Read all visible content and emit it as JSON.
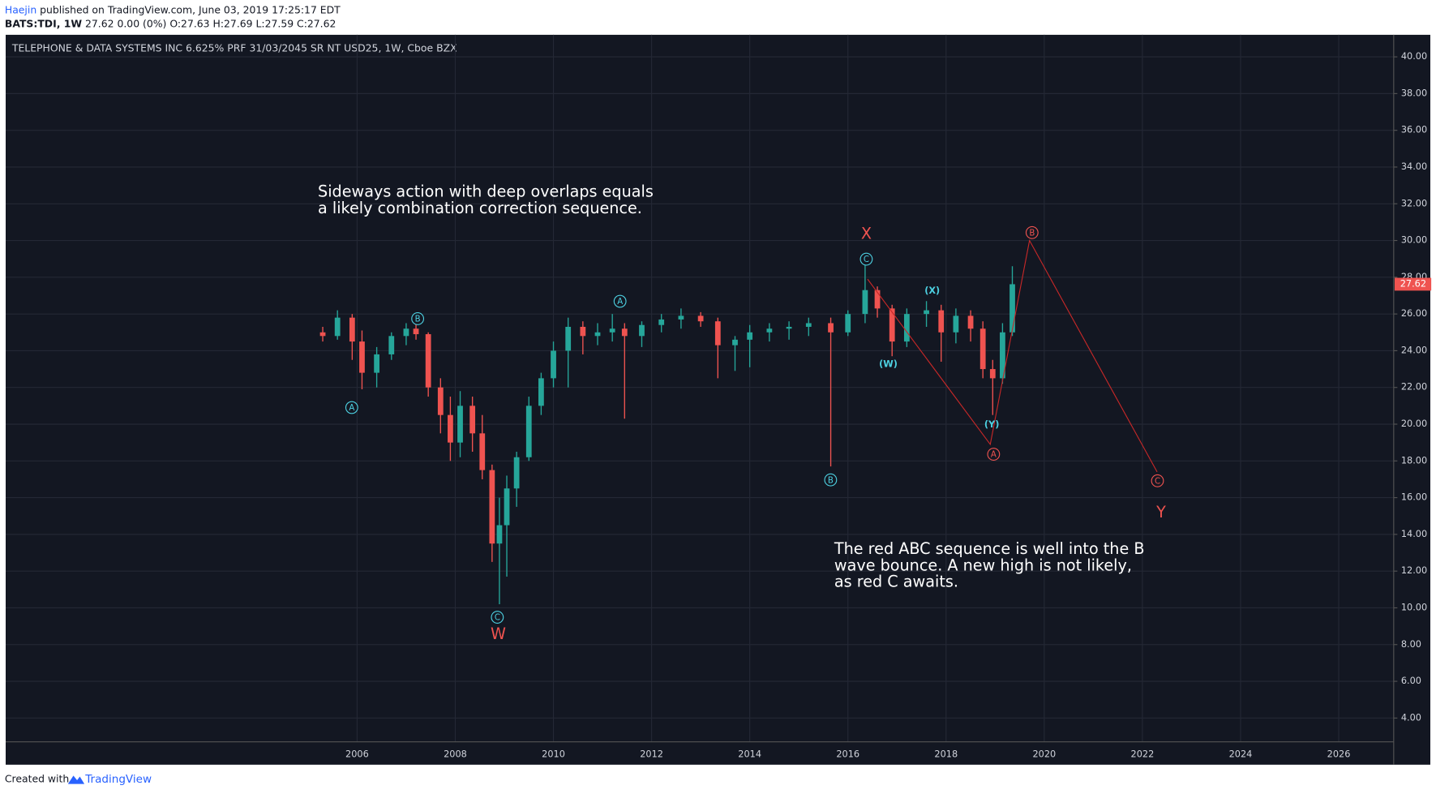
{
  "chart_data": {
    "type": "candlestick",
    "header": {
      "author": "Haejin",
      "published": "published on TradingView.com, June 03, 2019 17:25:17 EDT",
      "symbol": "BATS:TDI, 1W",
      "quote": "27.62 0.00 (0%) O:27.63 H:27.69 L:27.59 C:27.62"
    },
    "title": "TELEPHONE & DATA SYSTEMS INC 6.625% PRF 31/03/2045 SR NT USD25, 1W, Cboe BZX",
    "footer": {
      "created": "Created with",
      "brand": "TradingView"
    },
    "up_color": "#26a69a",
    "down_color": "#ef5350",
    "x": [
      2005.3,
      2005.6,
      2005.9,
      2006.1,
      2006.4,
      2006.7,
      2007.0,
      2007.2,
      2007.45,
      2007.7,
      2007.9,
      2008.1,
      2008.35,
      2008.55,
      2008.75,
      2008.9,
      2009.05,
      2009.25,
      2009.5,
      2009.75,
      2010.0,
      2010.3,
      2010.6,
      2010.9,
      2011.2,
      2011.45,
      2011.8,
      2012.2,
      2012.6,
      2013.0,
      2013.35,
      2013.7,
      2014.0,
      2014.4,
      2014.8,
      2015.2,
      2015.65,
      2016.0,
      2016.35,
      2016.6,
      2016.9,
      2017.2,
      2017.6,
      2017.9,
      2018.2,
      2018.5,
      2018.75,
      2018.95,
      2019.15,
      2019.35
    ],
    "open": [
      25,
      24.8,
      25.8,
      24.5,
      22.8,
      23.8,
      24.8,
      25.2,
      24.9,
      22,
      20.5,
      19,
      21,
      19.5,
      17.5,
      13.5,
      14.5,
      16.5,
      18.2,
      21,
      22.5,
      24,
      25.3,
      24.8,
      25,
      25.2,
      24.8,
      25.4,
      25.7,
      25.9,
      25.6,
      24.3,
      24.6,
      25,
      25.2,
      25.3,
      25.5,
      25,
      26,
      27.3,
      26.3,
      24.5,
      26,
      26.2,
      25,
      25.9,
      25.2,
      23,
      22.5,
      25
    ],
    "high": [
      25.3,
      26.2,
      26,
      25.1,
      24.2,
      25,
      25.5,
      25.6,
      25,
      22.5,
      21.5,
      21.8,
      21.5,
      20.5,
      17.8,
      16,
      17.2,
      18.5,
      21.5,
      22.8,
      24.5,
      25.8,
      25.6,
      25.5,
      26,
      25.5,
      25.6,
      26,
      26.3,
      26.1,
      25.8,
      24.8,
      25.4,
      25.5,
      25.6,
      25.8,
      25.8,
      26.2,
      28.7,
      27.5,
      26.5,
      26.3,
      26.7,
      26.5,
      26.3,
      26.2,
      25.6,
      23.5,
      25.5,
      28.6
    ],
    "low": [
      24.5,
      24.6,
      23.5,
      21.9,
      22,
      23.5,
      24.3,
      24.6,
      21.5,
      19.5,
      18,
      18.2,
      18.5,
      17,
      12.5,
      10.2,
      11.7,
      15.5,
      18,
      20.5,
      22,
      22,
      23.8,
      24.3,
      24.5,
      20.3,
      24.2,
      25,
      25.2,
      25.3,
      22.5,
      22.9,
      23.1,
      24.5,
      24.6,
      24.8,
      17.7,
      24.8,
      25.5,
      25.8,
      23.7,
      24.2,
      25.3,
      23.4,
      24.4,
      24.5,
      22.5,
      20.5,
      22.2,
      24.8
    ],
    "close": [
      24.8,
      25.8,
      24.5,
      22.8,
      23.8,
      24.8,
      25.2,
      24.9,
      22,
      20.5,
      19,
      21,
      19.5,
      17.5,
      13.5,
      14.5,
      16.5,
      18.2,
      21,
      22.5,
      24,
      25.3,
      24.8,
      25,
      25.2,
      24.8,
      25.4,
      25.7,
      25.9,
      25.6,
      24.3,
      24.6,
      25,
      25.2,
      25.3,
      25.5,
      25,
      26,
      27.3,
      26.3,
      24.5,
      26,
      26.2,
      25,
      25.9,
      25.2,
      23,
      22.5,
      25,
      27.62
    ],
    "last_price": {
      "value": 27.62,
      "label": "27.62"
    },
    "xlim": [
      1998.84,
      2027.12
    ],
    "ylim": [
      1.46,
      41.2
    ],
    "xticks": [
      2006,
      2008,
      2010,
      2012,
      2014,
      2016,
      2018,
      2020,
      2022,
      2024,
      2026
    ],
    "yticks": [
      {
        "value": 4,
        "label": "4.00"
      },
      {
        "value": 6,
        "label": "6.00"
      },
      {
        "value": 8,
        "label": "8.00"
      },
      {
        "value": 10,
        "label": "10.00"
      },
      {
        "value": 12,
        "label": "12.00"
      },
      {
        "value": 14,
        "label": "14.00"
      },
      {
        "value": 16,
        "label": "16.00"
      },
      {
        "value": 18,
        "label": "18.00"
      },
      {
        "value": 20,
        "label": "20.00"
      },
      {
        "value": 22,
        "label": "22.00"
      },
      {
        "value": 24,
        "label": "24.00"
      },
      {
        "value": 26,
        "label": "26.00"
      },
      {
        "value": 28,
        "label": "28.00"
      },
      {
        "value": 30,
        "label": "30.00"
      },
      {
        "value": 32,
        "label": "32.00"
      },
      {
        "value": 34,
        "label": "34.00"
      },
      {
        "value": 36,
        "label": "36.00"
      },
      {
        "value": 38,
        "label": "38.00"
      },
      {
        "value": 40,
        "label": "40.00"
      }
    ],
    "grid": true,
    "drawing": {
      "color": "#c62828",
      "x": [
        2016.4,
        2018.9,
        2019.7,
        2022.3
      ],
      "y": [
        27.9,
        18.9,
        30.0,
        17.4
      ]
    },
    "annotations": [
      {
        "text": "A",
        "color": "#4dd0e1",
        "circle": true
      },
      {
        "text": "B",
        "color": "#4dd0e1",
        "circle": true
      },
      {
        "text": "C",
        "color": "#4dd0e1",
        "circle": true
      },
      {
        "text": "A",
        "color": "#4dd0e1",
        "circle": true
      },
      {
        "text": "B",
        "color": "#4dd0e1",
        "circle": true
      },
      {
        "text": "C",
        "color": "#4dd0e1",
        "circle": true
      },
      {
        "text": "(W)",
        "color": "#4dd0e1",
        "circle": false
      },
      {
        "text": "(X)",
        "color": "#4dd0e1",
        "circle": false
      },
      {
        "text": "(Y)",
        "color": "#4dd0e1",
        "circle": false
      },
      {
        "text": "A",
        "color": "#ef5350",
        "circle": true
      },
      {
        "text": "B",
        "color": "#ef5350",
        "circle": true
      },
      {
        "text": "C",
        "color": "#ef5350",
        "circle": true
      },
      {
        "text": "W",
        "color": "#ef5350",
        "circle": false
      },
      {
        "text": "X",
        "color": "#ef5350",
        "circle": false
      },
      {
        "text": "Y",
        "color": "#ef5350",
        "circle": false
      }
    ],
    "notes": [
      [
        "Sideways action with deep overlaps equals",
        "a likely combination correction sequence."
      ],
      [
        "The red ABC sequence is well into the B",
        "wave bounce. A new high is not likely,",
        "as red C awaits."
      ]
    ]
  }
}
